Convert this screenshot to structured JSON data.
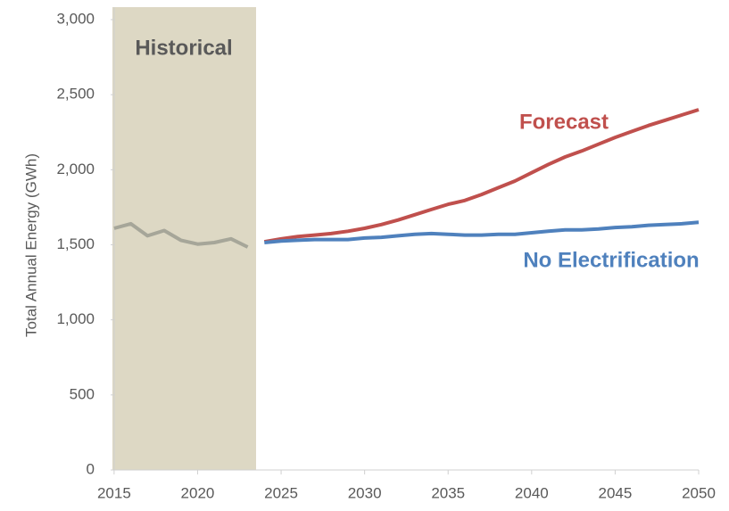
{
  "chart_data": {
    "type": "line",
    "ylabel": "Total Annual Energy (GWh)",
    "x": [
      2015,
      2016,
      2017,
      2018,
      2019,
      2020,
      2021,
      2022,
      2023,
      2024,
      2025,
      2026,
      2027,
      2028,
      2029,
      2030,
      2031,
      2032,
      2033,
      2034,
      2035,
      2036,
      2037,
      2038,
      2039,
      2040,
      2041,
      2042,
      2043,
      2044,
      2045,
      2046,
      2047,
      2048,
      2049,
      2050
    ],
    "shaded_region": [
      2014.9,
      2023.5
    ],
    "shade_color": "#ddd8c4",
    "series": [
      {
        "name": "Historical",
        "color": "#a6a699",
        "values": [
          1610,
          1640,
          1560,
          1595,
          1530,
          1505,
          1515,
          1540,
          1485,
          null,
          null,
          null,
          null,
          null,
          null,
          null,
          null,
          null,
          null,
          null,
          null,
          null,
          null,
          null,
          null,
          null,
          null,
          null,
          null,
          null,
          null,
          null,
          null,
          null,
          null,
          null
        ]
      },
      {
        "name": "Forecast",
        "color": "#c0504d",
        "values": [
          null,
          null,
          null,
          null,
          null,
          null,
          null,
          null,
          null,
          1520,
          1540,
          1555,
          1565,
          1575,
          1590,
          1610,
          1635,
          1665,
          1700,
          1735,
          1770,
          1795,
          1835,
          1880,
          1925,
          1980,
          2035,
          2085,
          2125,
          2170,
          2215,
          2255,
          2295,
          2330,
          2365,
          2400
        ]
      },
      {
        "name": "No Electrification",
        "color": "#4f81bd",
        "values": [
          null,
          null,
          null,
          null,
          null,
          null,
          null,
          null,
          null,
          1515,
          1525,
          1530,
          1535,
          1535,
          1535,
          1545,
          1550,
          1560,
          1570,
          1575,
          1570,
          1565,
          1565,
          1570,
          1570,
          1580,
          1590,
          1600,
          1600,
          1605,
          1615,
          1620,
          1630,
          1635,
          1640,
          1650
        ]
      }
    ],
    "xlim": [
      2014.9,
      2050
    ],
    "xticks": [
      2015,
      2020,
      2025,
      2030,
      2035,
      2040,
      2045,
      2050
    ],
    "ylim": [
      0,
      3000
    ],
    "yticks": [
      0,
      500,
      {
        "value": 1000,
        "label": "1,000"
      },
      {
        "value": 1500,
        "label": "1,500"
      },
      {
        "value": 2000,
        "label": "2,000"
      },
      {
        "value": 2500,
        "label": "2,500"
      },
      {
        "value": 3000,
        "label": "3,000"
      }
    ],
    "grid": false
  }
}
